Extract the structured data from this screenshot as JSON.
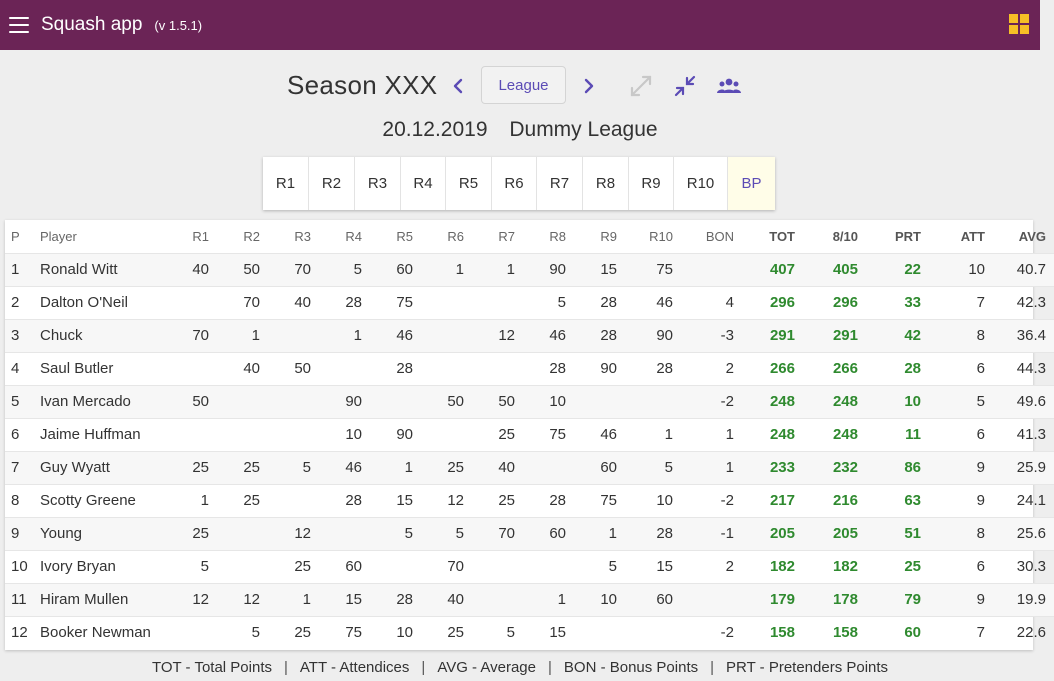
{
  "app": {
    "title": "Squash app",
    "version": "(v 1.5.1)"
  },
  "season": {
    "title": "Season XXX",
    "mode_button": "League"
  },
  "league": {
    "date": "20.12.2019",
    "name": "Dummy League"
  },
  "rounds": [
    "R1",
    "R2",
    "R3",
    "R4",
    "R5",
    "R6",
    "R7",
    "R8",
    "R9",
    "R10",
    "BP"
  ],
  "colors": {
    "appbar": "#6b2456",
    "accent": "#5b4bb5",
    "points_green": "#2f8a2f",
    "grid_icon": "#f6c026"
  },
  "icons": [
    "menu-icon",
    "grid-view-icon",
    "chevron-left-icon",
    "chevron-right-icon",
    "expand-icon",
    "collapse-icon",
    "people-icon"
  ],
  "table": {
    "headers": [
      "P",
      "Player",
      "R1",
      "R2",
      "R3",
      "R4",
      "R5",
      "R6",
      "R7",
      "R8",
      "R9",
      "R10",
      "BON",
      "TOT",
      "8/10",
      "PRT",
      "ATT",
      "AVG"
    ],
    "rows": [
      [
        "1",
        "Ronald Witt",
        "40",
        "50",
        "70",
        "5",
        "60",
        "1",
        "1",
        "90",
        "15",
        "75",
        "",
        "407",
        "405",
        "22",
        "10",
        "40.7"
      ],
      [
        "2",
        "Dalton O'Neil",
        "",
        "70",
        "40",
        "28",
        "75",
        "",
        "",
        "5",
        "28",
        "46",
        "4",
        "296",
        "296",
        "33",
        "7",
        "42.3"
      ],
      [
        "3",
        "Chuck",
        "70",
        "1",
        "",
        "1",
        "46",
        "",
        "12",
        "46",
        "28",
        "90",
        "-3",
        "291",
        "291",
        "42",
        "8",
        "36.4"
      ],
      [
        "4",
        "Saul Butler",
        "",
        "40",
        "50",
        "",
        "28",
        "",
        "",
        "28",
        "90",
        "28",
        "2",
        "266",
        "266",
        "28",
        "6",
        "44.3"
      ],
      [
        "5",
        "Ivan Mercado",
        "50",
        "",
        "",
        "90",
        "",
        "50",
        "50",
        "10",
        "",
        "",
        "-2",
        "248",
        "248",
        "10",
        "5",
        "49.6"
      ],
      [
        "6",
        "Jaime Huffman",
        "",
        "",
        "",
        "10",
        "90",
        "",
        "25",
        "75",
        "46",
        "1",
        "1",
        "248",
        "248",
        "11",
        "6",
        "41.3"
      ],
      [
        "7",
        "Guy Wyatt",
        "25",
        "25",
        "5",
        "46",
        "1",
        "25",
        "40",
        "",
        "60",
        "5",
        "1",
        "233",
        "232",
        "86",
        "9",
        "25.9"
      ],
      [
        "8",
        "Scotty Greene",
        "1",
        "25",
        "",
        "28",
        "15",
        "12",
        "25",
        "28",
        "75",
        "10",
        "-2",
        "217",
        "216",
        "63",
        "9",
        "24.1"
      ],
      [
        "9",
        "Young",
        "25",
        "",
        "12",
        "",
        "5",
        "5",
        "70",
        "60",
        "1",
        "28",
        "-1",
        "205",
        "205",
        "51",
        "8",
        "25.6"
      ],
      [
        "10",
        "Ivory Bryan",
        "5",
        "",
        "25",
        "60",
        "",
        "70",
        "",
        "",
        "5",
        "15",
        "2",
        "182",
        "182",
        "25",
        "6",
        "30.3"
      ],
      [
        "11",
        "Hiram Mullen",
        "12",
        "12",
        "1",
        "15",
        "28",
        "40",
        "",
        "1",
        "10",
        "60",
        "",
        "179",
        "178",
        "79",
        "9",
        "19.9"
      ],
      [
        "12",
        "Booker Newman",
        "",
        "5",
        "25",
        "75",
        "10",
        "25",
        "5",
        "15",
        "",
        "",
        "-2",
        "158",
        "158",
        "60",
        "7",
        "22.6"
      ]
    ]
  },
  "legend": [
    "TOT - Total Points",
    "ATT - Attendices",
    "AVG - Average",
    "BON - Bonus Points",
    "PRT - Pretenders Points"
  ],
  "legend_separator": "|"
}
